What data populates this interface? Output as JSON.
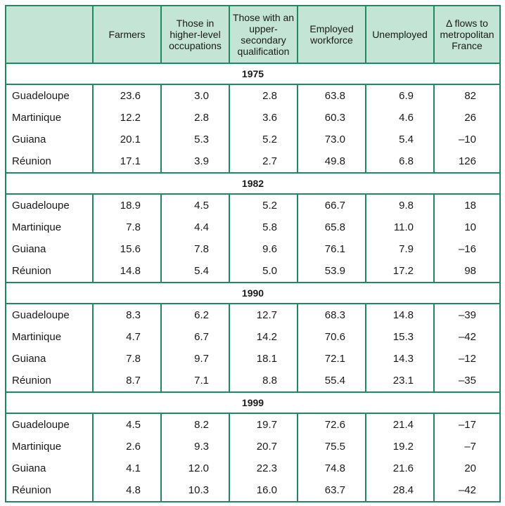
{
  "table": {
    "headers": [
      "",
      "Farmers",
      "Those in higher-level occupations",
      "Those with an upper-secondary qualification",
      "Employed workforce",
      "Unemployed",
      "Δ flows to metropolitan France"
    ],
    "groups": [
      {
        "year": "1975",
        "rows": [
          [
            "Guadeloupe",
            "23.6",
            "3.0",
            "2.8",
            "63.8",
            "6.9",
            "82"
          ],
          [
            "Martinique",
            "12.2",
            "2.8",
            "3.6",
            "60.3",
            "4.6",
            "26"
          ],
          [
            "Guiana",
            "20.1",
            "5.3",
            "5.2",
            "73.0",
            "5.4",
            "–10"
          ],
          [
            "Réunion",
            "17.1",
            "3.9",
            "2.7",
            "49.8",
            "6.8",
            "126"
          ]
        ]
      },
      {
        "year": "1982",
        "rows": [
          [
            "Guadeloupe",
            "18.9",
            "4.5",
            "5.2",
            "66.7",
            "9.8",
            "18"
          ],
          [
            "Martinique",
            "7.8",
            "4.4",
            "5.8",
            "65.8",
            "11.0",
            "10"
          ],
          [
            "Guiana",
            "15.6",
            "7.8",
            "9.6",
            "76.1",
            "7.9",
            "–16"
          ],
          [
            "Réunion",
            "14.8",
            "5.4",
            "5.0",
            "53.9",
            "17.2",
            "98"
          ]
        ]
      },
      {
        "year": "1990",
        "rows": [
          [
            "Guadeloupe",
            "8.3",
            "6.2",
            "12.7",
            "68.3",
            "14.8",
            "–39"
          ],
          [
            "Martinique",
            "4.7",
            "6.7",
            "14.2",
            "70.6",
            "15.3",
            "–42"
          ],
          [
            "Guiana",
            "7.8",
            "9.7",
            "18.1",
            "72.1",
            "14.3",
            "–12"
          ],
          [
            "Réunion",
            "8.7",
            "7.1",
            "8.8",
            "55.4",
            "23.1",
            "–35"
          ]
        ]
      },
      {
        "year": "1999",
        "rows": [
          [
            "Guadeloupe",
            "4.5",
            "8.2",
            "19.7",
            "72.6",
            "21.4",
            "–17"
          ],
          [
            "Martinique",
            "2.6",
            "9.3",
            "20.7",
            "75.5",
            "19.2",
            "–7"
          ],
          [
            "Guiana",
            "4.1",
            "12.0",
            "22.3",
            "74.8",
            "21.6",
            "20"
          ],
          [
            "Réunion",
            "4.8",
            "10.3",
            "16.0",
            "63.7",
            "28.4",
            "–42"
          ]
        ]
      }
    ]
  }
}
